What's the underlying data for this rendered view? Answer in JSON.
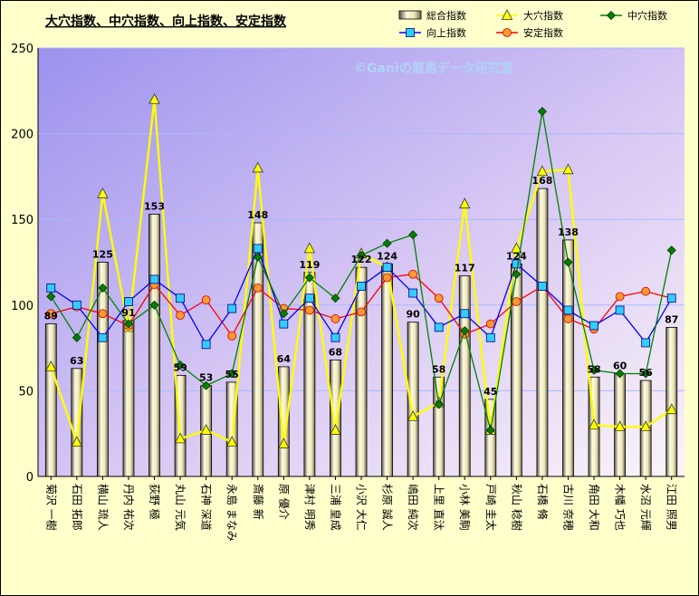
{
  "chart_data": {
    "type": "bar+line",
    "title": "大穴指数、中穴指数、向上指数、安定指数",
    "watermark": "©Ganiの競馬データ研究室",
    "ylim": [
      0,
      250
    ],
    "yticks": [
      0,
      50,
      100,
      150,
      200,
      250
    ],
    "grid": true,
    "legend_position": "top-right",
    "categories": [
      "菊沢 一樹",
      "石田 拓郎",
      "横山 琉人",
      "丹内 祐次",
      "荻野 極",
      "丸山 元気",
      "石神 深道",
      "永島 まなみ",
      "斎藤 新",
      "原 優介",
      "津村 明秀",
      "三浦 皇成",
      "小沢 大仁",
      "杉原 誠人",
      "嶋田 純次",
      "上里 直汰",
      "小林 美駒",
      "戸崎 圭太",
      "秋山 稔樹",
      "石橋 脩",
      "古川 奈穂",
      "角田 大和",
      "木幡 巧也",
      "水沼 元輝",
      "江田 照男"
    ],
    "series": [
      {
        "name": "総合指数",
        "kind": "bar",
        "color": "#f0ebc0",
        "labels": true,
        "values": [
          89,
          63,
          125,
          91,
          153,
          59,
          53,
          55,
          148,
          64,
          119,
          68,
          122,
          124,
          90,
          58,
          117,
          45,
          124,
          168,
          138,
          58,
          60,
          56,
          87
        ]
      },
      {
        "name": "大穴指数",
        "kind": "line",
        "color": "#ffff00",
        "marker": "triangle",
        "values": [
          64,
          20,
          165,
          87,
          220,
          22,
          27,
          20,
          180,
          19,
          133,
          27,
          130,
          122,
          35,
          43,
          159,
          27,
          133,
          178,
          179,
          30,
          29,
          29,
          39
        ]
      },
      {
        "name": "中穴指数",
        "kind": "line",
        "color": "#008000",
        "marker": "diamond",
        "values": [
          105,
          81,
          110,
          89,
          100,
          65,
          53,
          60,
          128,
          95,
          116,
          104,
          129,
          136,
          141,
          42,
          85,
          27,
          118,
          213,
          125,
          62,
          60,
          60,
          132
        ]
      },
      {
        "name": "向上指数",
        "kind": "line",
        "color": "#0000ff",
        "marker": "square",
        "values": [
          110,
          100,
          81,
          102,
          115,
          104,
          77,
          98,
          133,
          89,
          104,
          81,
          111,
          122,
          107,
          87,
          95,
          81,
          124,
          111,
          97,
          88,
          97,
          78,
          104
        ]
      },
      {
        "name": "安定指数",
        "kind": "line",
        "color": "#ff0000",
        "marker": "circle",
        "values": [
          95,
          99,
          95,
          88,
          112,
          94,
          103,
          82,
          110,
          98,
          97,
          92,
          96,
          116,
          118,
          104,
          83,
          89,
          102,
          111,
          92,
          86,
          105,
          108,
          104
        ]
      }
    ]
  }
}
